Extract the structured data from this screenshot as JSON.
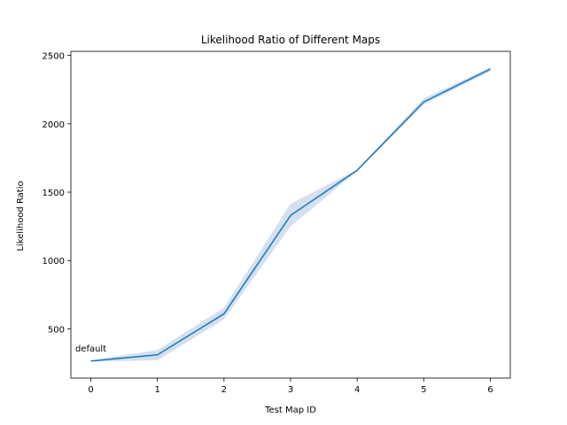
{
  "chart_data": {
    "type": "line",
    "title": "Likelihood Ratio of Different Maps",
    "xlabel": "Test Map ID",
    "ylabel": "Likelihood Ratio",
    "x": [
      0,
      1,
      2,
      3,
      4,
      5,
      6
    ],
    "series": [
      {
        "values": [
          265,
          310,
          610,
          1330,
          1660,
          2160,
          2400
        ],
        "ci_lower": [
          260,
          270,
          570,
          1250,
          1655,
          2140,
          2385
        ],
        "ci_upper": [
          270,
          345,
          655,
          1415,
          1665,
          2185,
          2415
        ],
        "color": "#1f77b4",
        "band_color": "#aec7e8"
      }
    ],
    "xlim": [
      -0.3,
      6.3
    ],
    "ylim": [
      140,
      2530
    ],
    "xticks": [
      0,
      1,
      2,
      3,
      4,
      5,
      6
    ],
    "yticks": [
      500,
      1000,
      1500,
      2000,
      2500
    ],
    "annotations": [
      {
        "text": "default",
        "x": 0,
        "y": 360
      }
    ],
    "grid": false
  }
}
